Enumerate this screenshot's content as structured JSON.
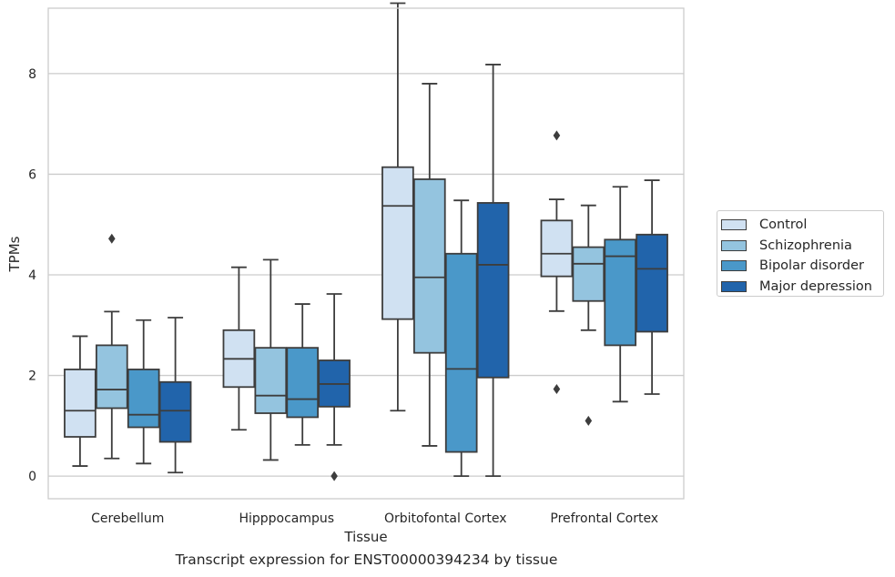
{
  "chart_data": {
    "type": "box",
    "title": "Transcript expression for ENST00000394234 by tissue",
    "xlabel": "Tissue",
    "ylabel": "TPMs",
    "ylim": [
      -0.45,
      9.3
    ],
    "yticks": [
      0,
      2,
      4,
      6,
      8
    ],
    "grid": true,
    "legend_position": "right",
    "categories": [
      "Cerebellum",
      "Hipppocampus",
      "Orbitofontal Cortex",
      "Prefrontal Cortex"
    ],
    "series": [
      {
        "name": "Control",
        "color": "#d0e1f2",
        "boxes": [
          {
            "whisker_low": 0.2,
            "q1": 0.78,
            "median": 1.3,
            "q3": 2.12,
            "whisker_high": 2.78,
            "outliers": []
          },
          {
            "whisker_low": 0.92,
            "q1": 1.77,
            "median": 2.33,
            "q3": 2.9,
            "whisker_high": 4.15,
            "outliers": []
          },
          {
            "whisker_low": 1.3,
            "q1": 3.12,
            "median": 5.37,
            "q3": 6.14,
            "whisker_high": 9.4,
            "outliers": []
          },
          {
            "whisker_low": 3.28,
            "q1": 3.97,
            "median": 4.42,
            "q3": 5.08,
            "whisker_high": 5.5,
            "outliers": [
              6.77,
              1.73
            ]
          }
        ]
      },
      {
        "name": "Schizophrenia",
        "color": "#94c4df",
        "boxes": [
          {
            "whisker_low": 0.35,
            "q1": 1.35,
            "median": 1.72,
            "q3": 2.6,
            "whisker_high": 3.27,
            "outliers": [
              4.72
            ]
          },
          {
            "whisker_low": 0.32,
            "q1": 1.25,
            "median": 1.6,
            "q3": 2.55,
            "whisker_high": 4.3,
            "outliers": []
          },
          {
            "whisker_low": 0.6,
            "q1": 2.45,
            "median": 3.95,
            "q3": 5.9,
            "whisker_high": 7.8,
            "outliers": []
          },
          {
            "whisker_low": 2.9,
            "q1": 3.48,
            "median": 4.22,
            "q3": 4.55,
            "whisker_high": 5.38,
            "outliers": [
              1.1
            ]
          }
        ]
      },
      {
        "name": "Bipolar disorder",
        "color": "#4a98c9",
        "boxes": [
          {
            "whisker_low": 0.25,
            "q1": 0.97,
            "median": 1.22,
            "q3": 2.12,
            "whisker_high": 3.1,
            "outliers": []
          },
          {
            "whisker_low": 0.62,
            "q1": 1.17,
            "median": 1.53,
            "q3": 2.55,
            "whisker_high": 3.42,
            "outliers": []
          },
          {
            "whisker_low": 0.0,
            "q1": 0.48,
            "median": 2.13,
            "q3": 4.42,
            "whisker_high": 5.48,
            "outliers": []
          },
          {
            "whisker_low": 1.48,
            "q1": 2.6,
            "median": 4.37,
            "q3": 4.7,
            "whisker_high": 5.75,
            "outliers": []
          }
        ]
      },
      {
        "name": "Major depression",
        "color": "#2164ab",
        "boxes": [
          {
            "whisker_low": 0.07,
            "q1": 0.68,
            "median": 1.3,
            "q3": 1.87,
            "whisker_high": 3.15,
            "outliers": []
          },
          {
            "whisker_low": 0.62,
            "q1": 1.38,
            "median": 1.83,
            "q3": 2.3,
            "whisker_high": 3.62,
            "outliers": [
              0.0
            ]
          },
          {
            "whisker_low": 0.0,
            "q1": 1.96,
            "median": 4.2,
            "q3": 5.43,
            "whisker_high": 8.18,
            "outliers": []
          },
          {
            "whisker_low": 1.63,
            "q1": 2.87,
            "median": 4.12,
            "q3": 4.8,
            "whisker_high": 5.88,
            "outliers": []
          }
        ]
      }
    ]
  }
}
